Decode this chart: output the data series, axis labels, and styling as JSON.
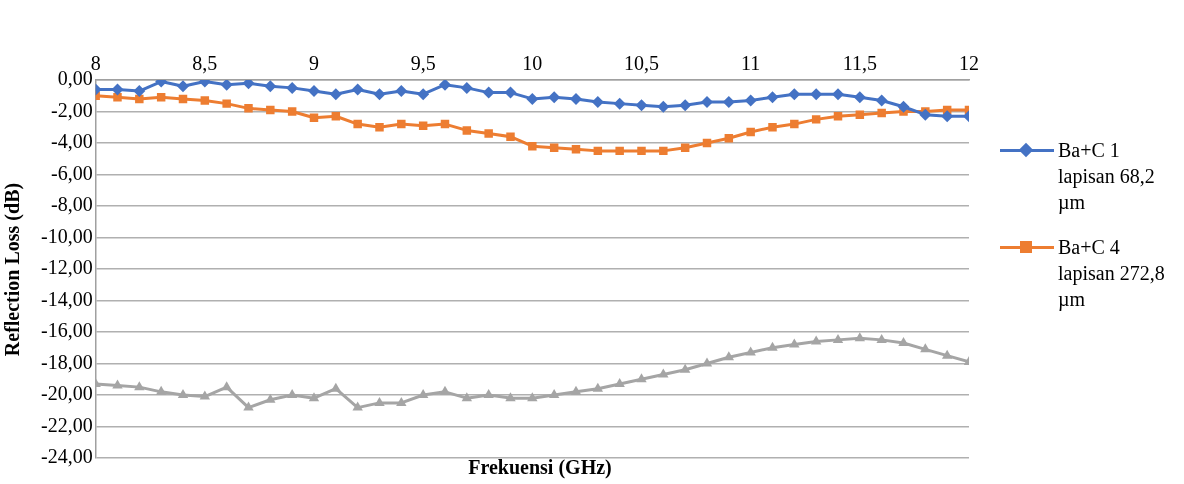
{
  "chart_data": {
    "type": "line",
    "xlabel": "Frekuensi (GHz)",
    "ylabel": "Reflection Loss (dB)",
    "x": [
      8,
      8.1,
      8.2,
      8.3,
      8.4,
      8.5,
      8.6,
      8.7,
      8.8,
      8.9,
      9,
      9.1,
      9.2,
      9.3,
      9.4,
      9.5,
      9.6,
      9.7,
      9.8,
      9.9,
      10,
      10.1,
      10.2,
      10.3,
      10.4,
      10.5,
      10.6,
      10.7,
      10.8,
      10.9,
      11,
      11.1,
      11.2,
      11.3,
      11.4,
      11.5,
      11.6,
      11.7,
      11.8,
      11.9,
      12
    ],
    "series": [
      {
        "name": "Ba+C 1 lapisan 68,2 µm",
        "color": "#4472c4",
        "marker": "diamond",
        "values": [
          -0.6,
          -0.6,
          -0.7,
          -0.1,
          -0.4,
          -0.1,
          -0.3,
          -0.2,
          -0.4,
          -0.5,
          -0.7,
          -0.9,
          -0.6,
          -0.9,
          -0.7,
          -0.9,
          -0.3,
          -0.5,
          -0.8,
          -0.8,
          -1.2,
          -1.1,
          -1.2,
          -1.4,
          -1.5,
          -1.6,
          -1.7,
          -1.6,
          -1.4,
          -1.4,
          -1.3,
          -1.1,
          -0.9,
          -0.9,
          -0.9,
          -1.1,
          -1.3,
          -1.7,
          -2.2,
          -2.3,
          -2.3
        ]
      },
      {
        "name": "Ba+C 4 lapisan 272,8 µm",
        "color": "#ed7d31",
        "marker": "square",
        "values": [
          -1.0,
          -1.1,
          -1.2,
          -1.1,
          -1.2,
          -1.3,
          -1.5,
          -1.8,
          -1.9,
          -2.0,
          -2.4,
          -2.3,
          -2.8,
          -3.0,
          -2.8,
          -2.9,
          -2.8,
          -3.2,
          -3.4,
          -3.6,
          -4.2,
          -4.3,
          -4.4,
          -4.5,
          -4.5,
          -4.5,
          -4.5,
          -4.3,
          -4.0,
          -3.7,
          -3.3,
          -3.0,
          -2.8,
          -2.5,
          -2.3,
          -2.2,
          -2.1,
          -2.0,
          -2.0,
          -1.9,
          -1.9
        ]
      },
      {
        "color": "#a5a5a5",
        "marker": "triangle",
        "values": [
          -19.3,
          -19.4,
          -19.5,
          -19.8,
          -20.0,
          -20.1,
          -19.5,
          -20.8,
          -20.3,
          -20.0,
          -20.2,
          -19.6,
          -20.8,
          -20.5,
          -20.5,
          -20.0,
          -19.8,
          -20.2,
          -20.0,
          -20.2,
          -20.2,
          -20.0,
          -19.8,
          -19.6,
          -19.3,
          -19.0,
          -18.7,
          -18.4,
          -18.0,
          -17.6,
          -17.3,
          -17.0,
          -16.8,
          -16.6,
          -16.5,
          -16.4,
          -16.5,
          -16.7,
          -17.1,
          -17.5,
          -17.9
        ]
      }
    ],
    "xlim": [
      8,
      12
    ],
    "xticks": [
      8,
      {
        "value": 8.5,
        "label": "8,5"
      },
      9,
      {
        "value": 9.5,
        "label": "9,5"
      },
      10,
      {
        "value": 10.5,
        "label": "10,5"
      },
      11,
      {
        "value": 11.5,
        "label": "11,5"
      },
      12
    ],
    "ylim": [
      -24,
      0
    ],
    "yticks": [
      {
        "value": 0,
        "label": "0,00"
      },
      {
        "value": -2,
        "label": "-2,00"
      },
      {
        "value": -4,
        "label": "-4,00"
      },
      {
        "value": -6,
        "label": "-6,00"
      },
      {
        "value": -8,
        "label": "-8,00"
      },
      {
        "value": -10,
        "label": "-10,00"
      },
      {
        "value": -12,
        "label": "-12,00"
      },
      {
        "value": -14,
        "label": "-14,00"
      },
      {
        "value": -16,
        "label": "-16,00"
      },
      {
        "value": -18,
        "label": "-18,00"
      },
      {
        "value": -20,
        "label": "-20,00"
      },
      {
        "value": -22,
        "label": "-22,00"
      },
      {
        "value": -24,
        "label": "-24,00"
      }
    ],
    "grid": "y",
    "legend": "right"
  }
}
